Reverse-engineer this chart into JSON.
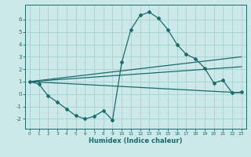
{
  "xlabel": "Humidex (Indice chaleur)",
  "background_color": "#cce8e8",
  "grid_color": "#aad4d4",
  "line_color": "#1a6b6b",
  "xlim": [
    -0.5,
    23.5
  ],
  "ylim": [
    -2.8,
    7.2
  ],
  "yticks": [
    -2,
    -1,
    0,
    1,
    2,
    3,
    4,
    5,
    6
  ],
  "xticks": [
    0,
    1,
    2,
    3,
    4,
    5,
    6,
    7,
    8,
    9,
    10,
    11,
    12,
    13,
    14,
    15,
    16,
    17,
    18,
    19,
    20,
    21,
    22,
    23
  ],
  "curve_x": [
    0,
    1,
    2,
    3,
    4,
    5,
    6,
    7,
    8,
    9,
    10,
    11,
    12,
    13,
    14,
    15,
    16,
    17,
    18,
    19,
    20,
    21,
    22,
    23
  ],
  "curve_y": [
    1.0,
    0.8,
    -0.15,
    -0.65,
    -1.2,
    -1.75,
    -2.0,
    -1.8,
    -1.35,
    -2.1,
    2.55,
    5.2,
    6.35,
    6.6,
    6.1,
    5.2,
    4.0,
    3.2,
    2.85,
    2.1,
    0.9,
    1.1,
    0.1,
    0.15
  ],
  "line1_x": [
    0,
    23
  ],
  "line1_y": [
    1.0,
    3.0
  ],
  "line2_x": [
    0,
    23
  ],
  "line2_y": [
    1.0,
    2.2
  ],
  "line3_x": [
    0,
    23
  ],
  "line3_y": [
    1.0,
    0.1
  ]
}
